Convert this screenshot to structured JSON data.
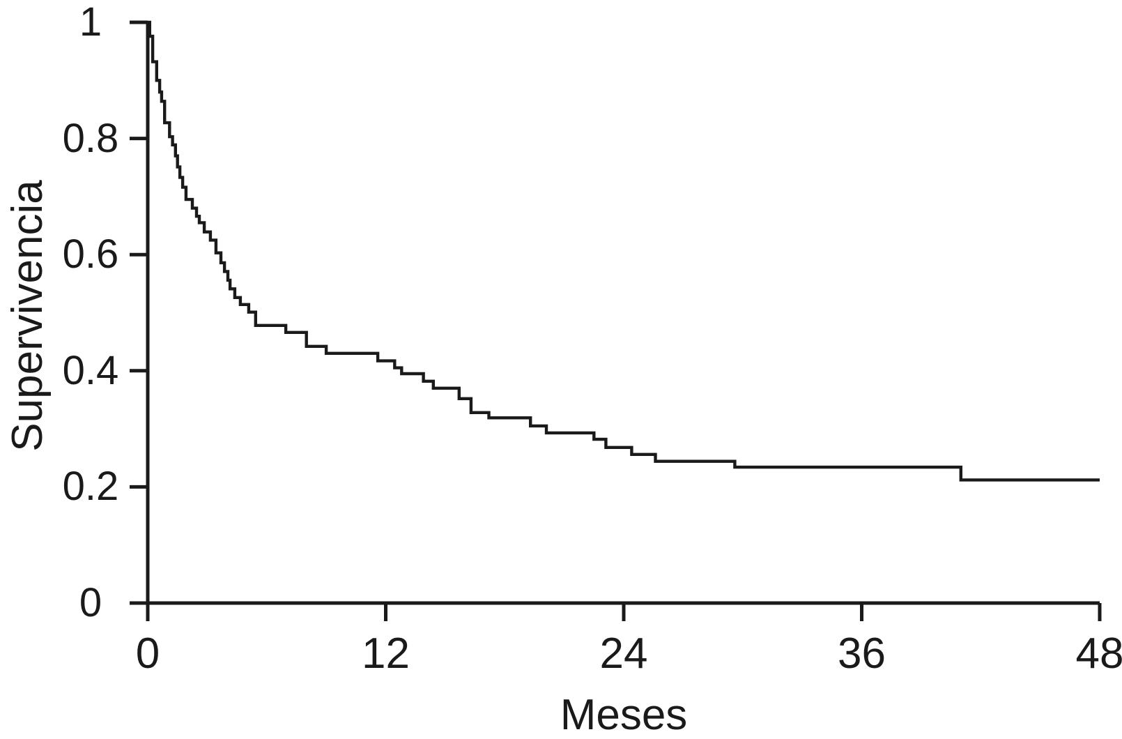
{
  "figure": {
    "background_color": "#ffffff",
    "axis_color": "#1a1a1a"
  },
  "chart_data": {
    "type": "line",
    "subtype": "kaplan-meier-step",
    "title": "",
    "xlabel": "Meses",
    "ylabel": "Supervivencia",
    "xlim": [
      0,
      48
    ],
    "ylim": [
      0,
      1
    ],
    "grid": false,
    "legend_position": "none",
    "line_color": "#1a1a1a",
    "x_ticks": [
      {
        "value": 0,
        "label": "0"
      },
      {
        "value": 12,
        "label": "12"
      },
      {
        "value": 24,
        "label": "24"
      },
      {
        "value": 36,
        "label": "36"
      },
      {
        "value": 48,
        "label": "48"
      }
    ],
    "y_ticks": [
      {
        "value": 0,
        "label": "0"
      },
      {
        "value": 0.2,
        "label": "0.2"
      },
      {
        "value": 0.4,
        "label": "0.4"
      },
      {
        "value": 0.6,
        "label": "0.6"
      },
      {
        "value": 0.8,
        "label": "0.8"
      },
      {
        "value": 1,
        "label": "1"
      }
    ],
    "series": [
      {
        "name": "Supervivencia",
        "end_time": 48,
        "steps": [
          [
            0.0,
            1.0
          ],
          [
            0.1,
            0.976
          ],
          [
            0.25,
            0.932
          ],
          [
            0.45,
            0.9
          ],
          [
            0.6,
            0.88
          ],
          [
            0.7,
            0.864
          ],
          [
            0.85,
            0.827
          ],
          [
            1.1,
            0.803
          ],
          [
            1.25,
            0.789
          ],
          [
            1.4,
            0.77
          ],
          [
            1.5,
            0.751
          ],
          [
            1.62,
            0.733
          ],
          [
            1.76,
            0.716
          ],
          [
            1.93,
            0.695
          ],
          [
            2.25,
            0.68
          ],
          [
            2.46,
            0.666
          ],
          [
            2.6,
            0.655
          ],
          [
            2.85,
            0.639
          ],
          [
            3.16,
            0.625
          ],
          [
            3.44,
            0.603
          ],
          [
            3.69,
            0.586
          ],
          [
            3.87,
            0.571
          ],
          [
            4.04,
            0.556
          ],
          [
            4.15,
            0.541
          ],
          [
            4.39,
            0.526
          ],
          [
            4.67,
            0.514
          ],
          [
            5.09,
            0.501
          ],
          [
            5.44,
            0.478
          ],
          [
            6.96,
            0.466
          ],
          [
            8.0,
            0.442
          ],
          [
            9.0,
            0.43
          ],
          [
            11.6,
            0.417
          ],
          [
            12.45,
            0.405
          ],
          [
            12.8,
            0.395
          ],
          [
            13.9,
            0.382
          ],
          [
            14.4,
            0.37
          ],
          [
            15.7,
            0.352
          ],
          [
            16.3,
            0.328
          ],
          [
            17.2,
            0.319
          ],
          [
            19.3,
            0.305
          ],
          [
            20.1,
            0.293
          ],
          [
            22.5,
            0.282
          ],
          [
            23.1,
            0.268
          ],
          [
            24.4,
            0.256
          ],
          [
            25.6,
            0.244
          ],
          [
            29.6,
            0.234
          ],
          [
            41.0,
            0.212
          ]
        ]
      }
    ]
  }
}
